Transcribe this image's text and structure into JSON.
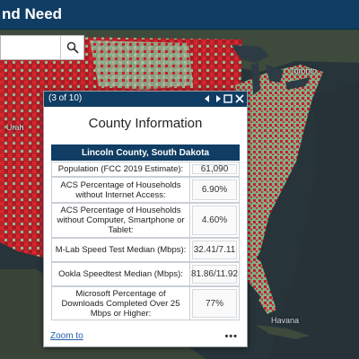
{
  "header": {
    "title": "nd Need"
  },
  "search": {
    "value": "",
    "placeholder": ""
  },
  "map": {
    "place_labels": [
      "Toronto",
      "Havana",
      "Urah"
    ],
    "colors": {
      "ocean": "#27343a",
      "land_dark": "#3d4a3c",
      "red": "#c8202a",
      "green": "#7fb08a",
      "water_lakes": "#2c3b44"
    }
  },
  "popup": {
    "pager": "(3 of 10)",
    "title": "County Information",
    "county": "Lincoln County, South Dakota",
    "rows": [
      {
        "label": "Population (FCC 2019 Estimate):",
        "value": "61,090"
      },
      {
        "label": "ACS Percentage of Households without Internet Access:",
        "value": "6.90%"
      },
      {
        "label": "ACS Percentage of Households without Computer, Smartphone or Tablet:",
        "value": "4.60%"
      },
      {
        "label": "M-Lab Speed Test Median (Mbps):",
        "value": "32.41/7.11"
      },
      {
        "label": "Ookla Speedtest Median (Mbps):",
        "value": "81.86/11.92"
      },
      {
        "label": "Microsoft Percentage of Downloads Completed Over 25 Mbps or Higher:",
        "value": "77%"
      }
    ],
    "zoom_label": "Zoom to",
    "more_label": "•••"
  }
}
